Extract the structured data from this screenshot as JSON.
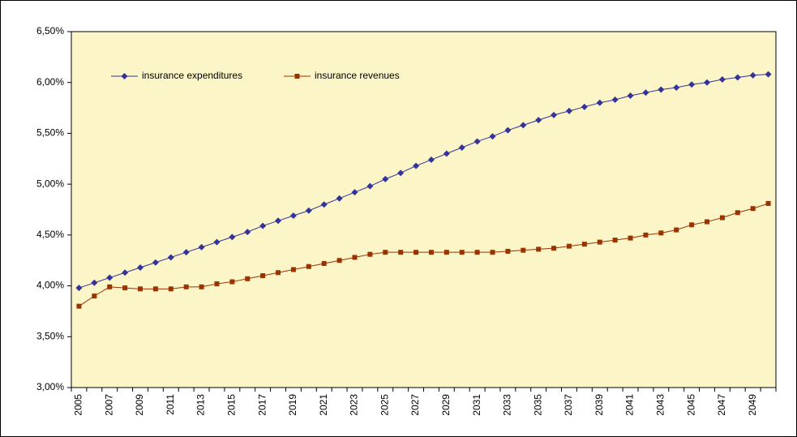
{
  "chart_data": {
    "type": "line",
    "categories": [
      "2005",
      null,
      "2007",
      null,
      "2009",
      null,
      "2011",
      null,
      "2013",
      null,
      "2015",
      null,
      "2017",
      null,
      "2019",
      null,
      "2021",
      null,
      "2023",
      null,
      "2025",
      null,
      "2027",
      null,
      "2029",
      null,
      "2031",
      null,
      "2033",
      null,
      "2035",
      null,
      "2037",
      null,
      "2039",
      null,
      "2041",
      null,
      "2043",
      null,
      "2045",
      null,
      "2047",
      null,
      "2049",
      null
    ],
    "series": [
      {
        "name": "insurance expenditures",
        "color": "#333399",
        "marker": "diamond",
        "values": [
          3.98,
          4.03,
          4.08,
          4.13,
          4.18,
          4.23,
          4.28,
          4.33,
          4.38,
          4.43,
          4.48,
          4.53,
          4.59,
          4.64,
          4.69,
          4.74,
          4.8,
          4.86,
          4.92,
          4.98,
          5.05,
          5.11,
          5.18,
          5.24,
          5.3,
          5.36,
          5.42,
          5.47,
          5.53,
          5.58,
          5.63,
          5.68,
          5.72,
          5.76,
          5.8,
          5.83,
          5.87,
          5.9,
          5.93,
          5.95,
          5.98,
          6.0,
          6.03,
          6.05,
          6.07,
          6.08
        ]
      },
      {
        "name": "insurance revenues",
        "color": "#993300",
        "marker": "square",
        "values": [
          3.8,
          3.9,
          3.99,
          3.98,
          3.97,
          3.97,
          3.97,
          3.99,
          3.99,
          4.02,
          4.04,
          4.07,
          4.1,
          4.13,
          4.16,
          4.19,
          4.22,
          4.25,
          4.28,
          4.31,
          4.33,
          4.33,
          4.33,
          4.33,
          4.33,
          4.33,
          4.33,
          4.33,
          4.34,
          4.35,
          4.36,
          4.37,
          4.39,
          4.41,
          4.43,
          4.45,
          4.47,
          4.5,
          4.52,
          4.55,
          4.6,
          4.63,
          4.67,
          4.72,
          4.76,
          4.81
        ]
      }
    ],
    "ylim": [
      3.0,
      6.5
    ],
    "yticks": [
      {
        "value": 3.0,
        "label": "3,00%"
      },
      {
        "value": 3.5,
        "label": "3,50%"
      },
      {
        "value": 4.0,
        "label": "4,00%"
      },
      {
        "value": 4.5,
        "label": "4,50%"
      },
      {
        "value": 5.0,
        "label": "5,00%"
      },
      {
        "value": 5.5,
        "label": "5,50%"
      },
      {
        "value": 6.0,
        "label": "6,00%"
      },
      {
        "value": 6.5,
        "label": "6,50%"
      }
    ],
    "grid": false,
    "legend": "top-left",
    "plot_background": "#fcf5c8"
  }
}
